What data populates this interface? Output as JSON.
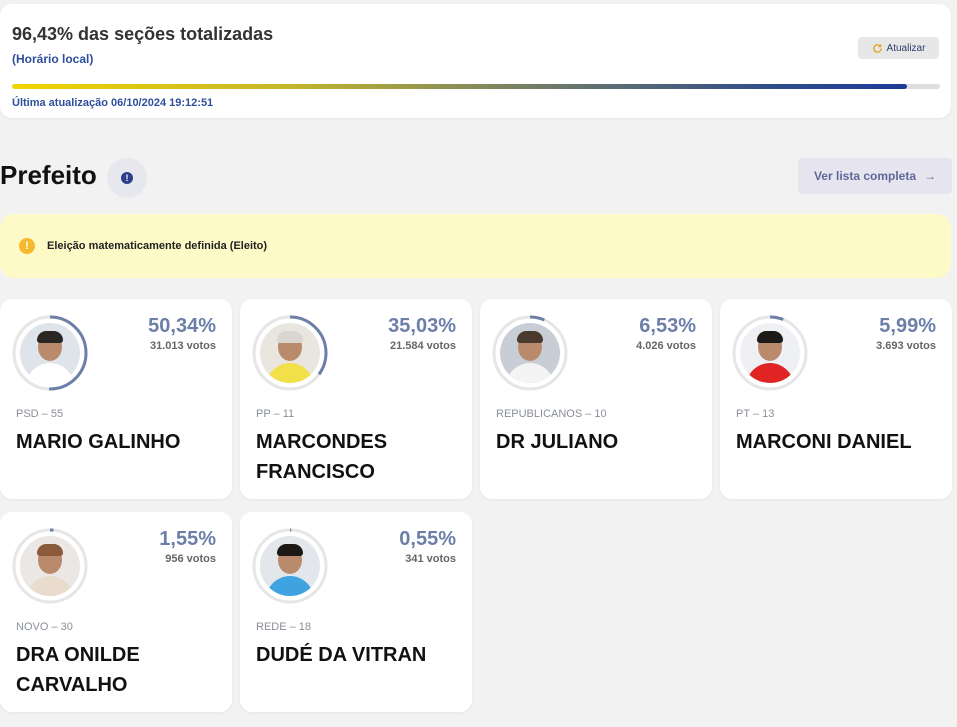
{
  "status": {
    "title": "96,43% das seções totalizadas",
    "subtitle": "(Horário local)",
    "refresh_label": "Atualizar",
    "progress_percent": 96.43,
    "last_update": "Última atualização 06/10/2024 19:12:51"
  },
  "section": {
    "title": "Prefeito",
    "info_icon": "!",
    "list_button": "Ver lista completa",
    "list_arrow": "→"
  },
  "alert": {
    "icon": "!",
    "text": "Eleição matematicamente definida (Eleito)",
    "color": "#f6b92b"
  },
  "candidates": [
    {
      "name": "MARIO GALINHO",
      "party": "PSD – 55",
      "percent": "50,34%",
      "percent_value": 50.34,
      "votes": "31.013 votos",
      "shirt": "#ffffff",
      "bg": "#dfe3ea",
      "hair": "#2a2624"
    },
    {
      "name": "MARCONDES FRANCISCO",
      "party": "PP – 11",
      "percent": "35,03%",
      "percent_value": 35.03,
      "votes": "21.584 votos",
      "shirt": "#f2e04a",
      "bg": "#e8e6de",
      "hair": "#d9d5cf"
    },
    {
      "name": "DR JULIANO",
      "party": "REPUBLICANOS – 10",
      "percent": "6,53%",
      "percent_value": 6.53,
      "votes": "4.026 votos",
      "shirt": "#f4f4f4",
      "bg": "#c9ced6",
      "hair": "#4a3a2e"
    },
    {
      "name": "MARCONI DANIEL",
      "party": "PT – 13",
      "percent": "5,99%",
      "percent_value": 5.99,
      "votes": "3.693 votos",
      "shirt": "#e02424",
      "bg": "#eef0f3",
      "hair": "#1e1a18"
    },
    {
      "name": "DRA ONILDE CARVALHO",
      "party": "NOVO – 30",
      "percent": "1,55%",
      "percent_value": 1.55,
      "votes": "956 votos",
      "shirt": "#e9dccf",
      "bg": "#ebe7e4",
      "hair": "#8a5a3a"
    },
    {
      "name": "DUDÉ DA VITRAN",
      "party": "REDE – 18",
      "percent": "0,55%",
      "percent_value": 0.55,
      "votes": "341 votos",
      "shirt": "#3ea3e0",
      "bg": "#e3e6ea",
      "hair": "#1c1816"
    }
  ],
  "colors": {
    "accent": "#2d4f9c",
    "ring": "#6d7fa8",
    "ring_track": "#e6e6e6"
  }
}
